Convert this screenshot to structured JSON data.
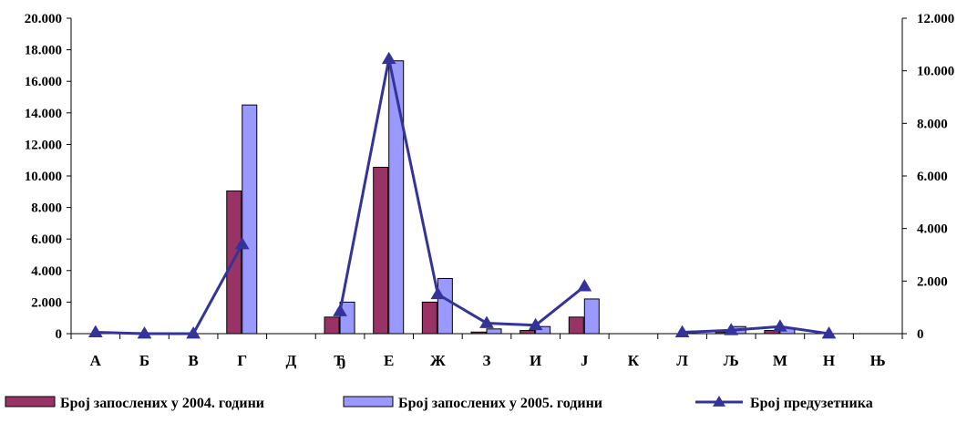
{
  "chart_data": {
    "type": "bar",
    "categories": [
      "А",
      "Б",
      "В",
      "Г",
      "Д",
      "Ђ",
      "Е",
      "Ж",
      "З",
      "И",
      "Ј",
      "К",
      "Л",
      "Љ",
      "М",
      "Н",
      "Њ"
    ],
    "y_left": {
      "ylim": [
        0,
        20000
      ],
      "ticks": [
        0,
        2000,
        4000,
        6000,
        8000,
        10000,
        12000,
        14000,
        16000,
        18000,
        20000
      ],
      "tick_labels": [
        "0",
        "2.000",
        "4.000",
        "6.000",
        "8.000",
        "10.000",
        "12.000",
        "14.000",
        "16.000",
        "18.000",
        "20.000"
      ]
    },
    "y_right": {
      "ylim": [
        0,
        12000
      ],
      "ticks": [
        0,
        2000,
        4000,
        6000,
        8000,
        10000,
        12000
      ],
      "tick_labels": [
        "0",
        "2.000",
        "4.000",
        "6.000",
        "8.000",
        "10.000",
        "12.000"
      ]
    },
    "series": [
      {
        "name": "Број запослених у 2004. години",
        "kind": "bar",
        "axis": "left",
        "color": "#993366",
        "values": [
          0,
          0,
          0,
          9050,
          0,
          1050,
          10550,
          2000,
          100,
          200,
          1050,
          0,
          0,
          100,
          200,
          0,
          0
        ]
      },
      {
        "name": "Број запослених у 2005. години",
        "kind": "bar",
        "axis": "left",
        "color": "#9999ff",
        "values": [
          0,
          0,
          0,
          14500,
          0,
          2000,
          17300,
          3500,
          300,
          450,
          2200,
          0,
          0,
          450,
          350,
          0,
          0
        ]
      },
      {
        "name": "Број предузетника",
        "kind": "line",
        "axis": "right",
        "color": "#333399",
        "marker": "triangle",
        "values": [
          50,
          0,
          0,
          3400,
          null,
          850,
          10450,
          1500,
          400,
          320,
          1800,
          null,
          50,
          130,
          270,
          0,
          null
        ]
      }
    ],
    "legend_position": "bottom",
    "grid": false
  }
}
